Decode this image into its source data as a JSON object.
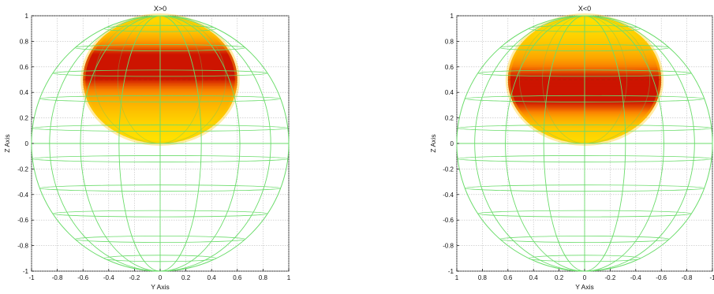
{
  "chart_data": [
    {
      "type": "surface",
      "title": "X>0",
      "xlabel": "Y Axis",
      "ylabel": "Z Axis",
      "xlim": [
        -1,
        1
      ],
      "ylim": [
        -1,
        1
      ],
      "x_reversed": false,
      "grid": true,
      "xticks": [
        "-1",
        "-0.8",
        "-0.6",
        "-0.4",
        "-0.2",
        "0",
        "0.2",
        "0.4",
        "0.6",
        "0.8",
        "1"
      ],
      "yticks": [
        "1",
        "0.8",
        "0.6",
        "0.4",
        "0.2",
        "0",
        "-0.2",
        "-0.4",
        "-0.6",
        "-0.8",
        "-1"
      ],
      "wire_sphere": {
        "center": [
          0,
          0
        ],
        "radius": 1,
        "color": "#6bdc6b"
      },
      "pattern_surface": {
        "center": [
          0,
          0.5
        ],
        "radius_y": 0.6,
        "radius_z": 0.5,
        "colormap": "yellow-red",
        "max_response_z": 0.6
      }
    },
    {
      "type": "surface",
      "title": "X<0",
      "xlabel": "Y Axis",
      "ylabel": "Z Axis",
      "xlim": [
        1,
        -1
      ],
      "ylim": [
        -1,
        1
      ],
      "x_reversed": true,
      "grid": true,
      "xticks": [
        "1",
        "0.8",
        "0.6",
        "0.4",
        "0.2",
        "0",
        "-0.2",
        "-0.4",
        "-0.6",
        "-0.8",
        "-1"
      ],
      "yticks": [
        "1",
        "0.8",
        "0.6",
        "0.4",
        "0.2",
        "0",
        "-0.2",
        "-0.4",
        "-0.6",
        "-0.8",
        "-1"
      ],
      "wire_sphere": {
        "center": [
          0,
          0
        ],
        "radius": 1,
        "color": "#6bdc6b"
      },
      "pattern_surface": {
        "center": [
          0,
          0.5
        ],
        "radius_y": 0.6,
        "radius_z": 0.5,
        "colormap": "yellow-red",
        "max_response_z": 0.42
      }
    }
  ]
}
